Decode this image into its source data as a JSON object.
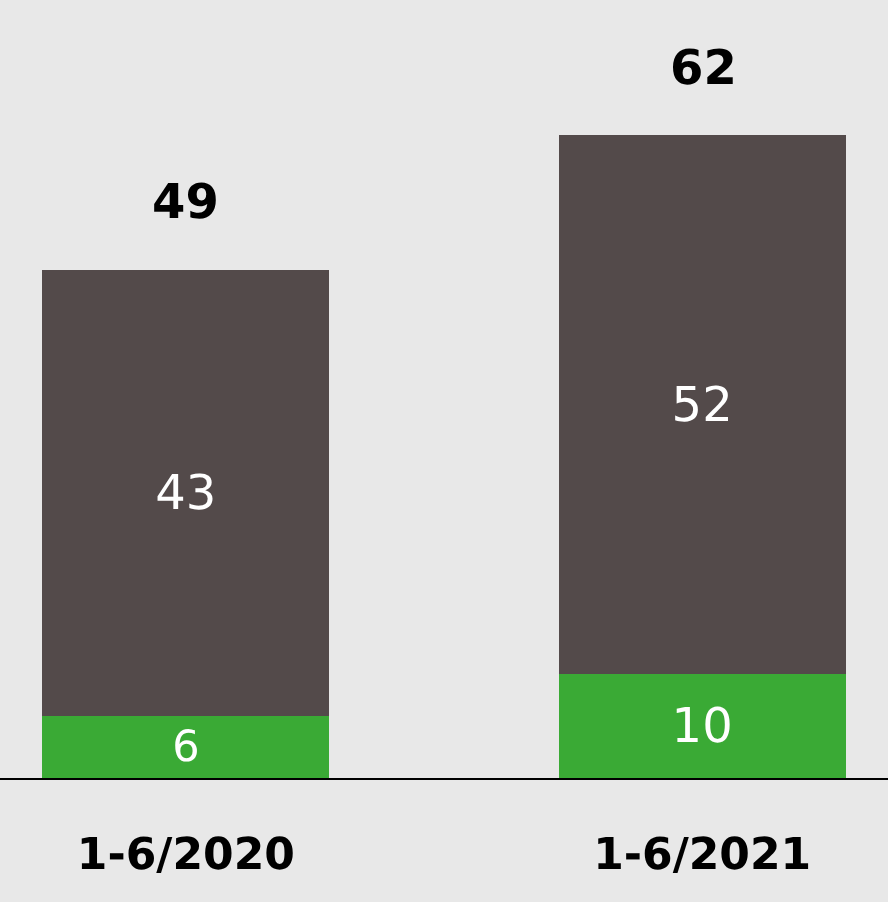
{
  "chart_data": {
    "type": "bar",
    "stacked": true,
    "categories": [
      "1-6/2020",
      "1-6/2021"
    ],
    "series": [
      {
        "color": "#3aaa35",
        "values": [
          6,
          10
        ]
      },
      {
        "color": "#534a4a",
        "values": [
          43,
          52
        ]
      }
    ],
    "data_labels": true,
    "totals": [
      "49",
      "62"
    ],
    "legend": false,
    "grid": false
  }
}
